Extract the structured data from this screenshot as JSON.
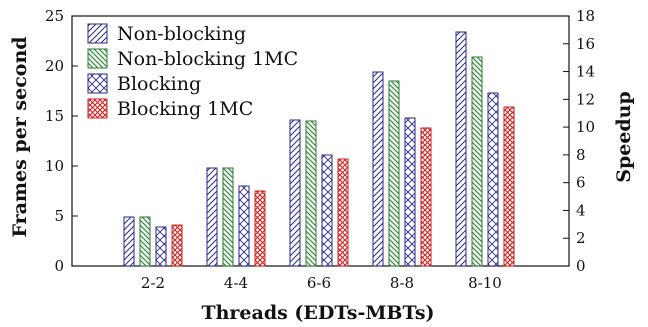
{
  "chart_data": {
    "type": "bar",
    "title": "",
    "xlabel": "Threads (EDTs-MBTs)",
    "ylabel": "Frames per second",
    "y2label": "Speedup",
    "categories": [
      "2-2",
      "4-4",
      "6-6",
      "8-8",
      "8-10"
    ],
    "ylim": [
      0,
      25
    ],
    "yticks": [
      0,
      5,
      10,
      15,
      20,
      25
    ],
    "y2lim": [
      0,
      18
    ],
    "y2ticks": [
      0,
      2,
      4,
      6,
      8,
      10,
      12,
      14,
      16,
      18
    ],
    "legend_position": "top-left",
    "series": [
      {
        "name": "Non-blocking",
        "values": [
          4.9,
          9.8,
          14.6,
          19.4,
          23.4
        ],
        "color": "#2a2a8a",
        "pattern": "diagonal"
      },
      {
        "name": "Non-blocking 1MC",
        "values": [
          4.9,
          9.8,
          14.5,
          18.5,
          20.9
        ],
        "color": "#2e7a3a",
        "pattern": "back-diagonal"
      },
      {
        "name": "Blocking",
        "values": [
          3.9,
          8.0,
          11.1,
          14.8,
          17.3
        ],
        "color": "#2a2a8a",
        "pattern": "crosshatch"
      },
      {
        "name": "Blocking 1MC",
        "values": [
          4.1,
          7.5,
          10.7,
          13.8,
          15.9
        ],
        "color": "#cc2222",
        "pattern": "grid"
      }
    ]
  }
}
